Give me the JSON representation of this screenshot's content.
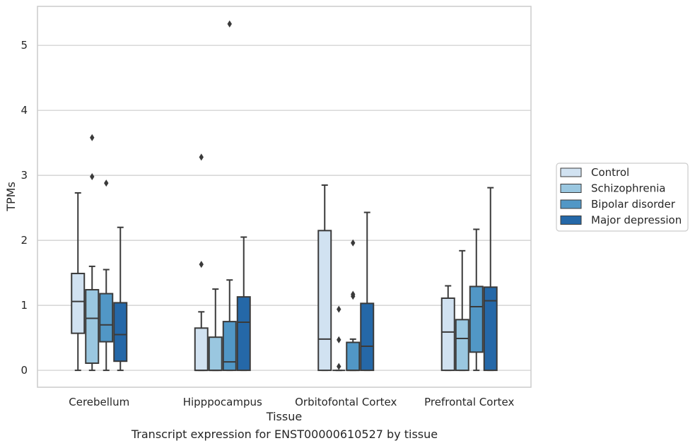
{
  "caption": "Transcript expression for ENST00000610527 by tissue",
  "chart_data": {
    "type": "box",
    "xlabel": "Tissue",
    "ylabel": "TPMs",
    "ylim": [
      -0.26,
      5.6
    ],
    "yticks": [
      0,
      1,
      2,
      3,
      4,
      5
    ],
    "grid": "horizontal",
    "legend_position": "right",
    "categories": [
      "Cerebellum",
      "Hipppocampus",
      "Orbitofontal Cortex",
      "Prefrontal Cortex"
    ],
    "series": [
      {
        "name": "Control",
        "color": "#d1e2f1",
        "boxes": [
          {
            "whislo": 0.0,
            "q1": 0.57,
            "med": 1.06,
            "q3": 1.49,
            "whishi": 2.73,
            "fliers": []
          },
          {
            "whislo": 0.0,
            "q1": 0.0,
            "med": 0.0,
            "q3": 0.65,
            "whishi": 0.9,
            "fliers": [
              1.63,
              3.28
            ]
          },
          {
            "whislo": 0.0,
            "q1": 0.0,
            "med": 0.48,
            "q3": 2.15,
            "whishi": 2.85,
            "fliers": []
          },
          {
            "whislo": 0.0,
            "q1": 0.0,
            "med": 0.59,
            "q3": 1.11,
            "whishi": 1.3,
            "fliers": []
          }
        ]
      },
      {
        "name": "Schizophrenia",
        "color": "#9ac7e0",
        "boxes": [
          {
            "whislo": 0.0,
            "q1": 0.11,
            "med": 0.8,
            "q3": 1.24,
            "whishi": 1.6,
            "fliers": [
              2.98,
              3.58
            ]
          },
          {
            "whislo": 0.0,
            "q1": 0.0,
            "med": 0.0,
            "q3": 0.51,
            "whishi": 1.25,
            "fliers": []
          },
          {
            "whislo": 0.0,
            "q1": 0.0,
            "med": 0.0,
            "q3": 0.0,
            "whishi": 0.0,
            "fliers": [
              0.06,
              0.47,
              0.94
            ]
          },
          {
            "whislo": 0.0,
            "q1": 0.0,
            "med": 0.49,
            "q3": 0.78,
            "whishi": 1.84,
            "fliers": []
          }
        ]
      },
      {
        "name": "Bipolar disorder",
        "color": "#5197c6",
        "boxes": [
          {
            "whislo": 0.0,
            "q1": 0.44,
            "med": 0.7,
            "q3": 1.18,
            "whishi": 1.55,
            "fliers": [
              2.88
            ]
          },
          {
            "whislo": 0.0,
            "q1": 0.0,
            "med": 0.13,
            "q3": 0.75,
            "whishi": 1.39,
            "fliers": [
              5.33
            ]
          },
          {
            "whislo": 0.0,
            "q1": 0.0,
            "med": 0.0,
            "q3": 0.43,
            "whishi": 0.48,
            "fliers": [
              1.14,
              1.17,
              1.96
            ]
          },
          {
            "whislo": 0.0,
            "q1": 0.28,
            "med": 0.98,
            "q3": 1.29,
            "whishi": 2.17,
            "fliers": []
          }
        ]
      },
      {
        "name": "Major depression",
        "color": "#2568a8",
        "boxes": [
          {
            "whislo": 0.0,
            "q1": 0.14,
            "med": 0.55,
            "q3": 1.04,
            "whishi": 2.2,
            "fliers": []
          },
          {
            "whislo": 0.0,
            "q1": 0.0,
            "med": 0.74,
            "q3": 1.13,
            "whishi": 2.05,
            "fliers": []
          },
          {
            "whislo": 0.0,
            "q1": 0.0,
            "med": 0.37,
            "q3": 1.03,
            "whishi": 2.43,
            "fliers": []
          },
          {
            "whislo": 0.0,
            "q1": 0.0,
            "med": 1.07,
            "q3": 1.28,
            "whishi": 2.81,
            "fliers": []
          }
        ]
      }
    ]
  }
}
